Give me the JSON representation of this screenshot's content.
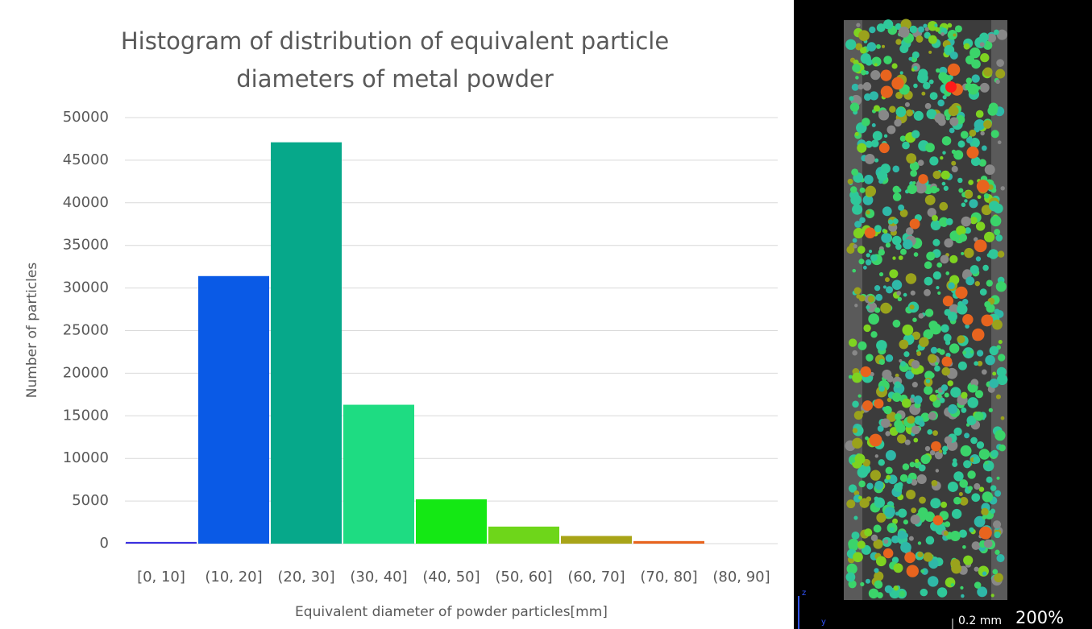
{
  "chart_data": {
    "type": "bar",
    "title": "Histogram of distribution of equivalent particle diameters of metal powder",
    "x_label": "Equivalent diameter of powder particles[mm]",
    "y_label": "Number of particles",
    "categories": [
      "[0, 10]",
      "(10, 20]",
      "(20, 30]",
      "(30, 40]",
      "(40, 50]",
      "(50, 60]",
      "(60, 70]",
      "(70, 80]",
      "(80, 90]"
    ],
    "values": [
      200,
      31400,
      47100,
      16300,
      5200,
      2000,
      900,
      300,
      0
    ],
    "colors": [
      "#3a2fe0",
      "#0a5ae6",
      "#06a88a",
      "#1edc82",
      "#14e814",
      "#6ed61a",
      "#a8a418",
      "#e8641e",
      "#e8641e"
    ],
    "ylim": [
      0,
      50000
    ],
    "yticks": [
      0,
      5000,
      10000,
      15000,
      20000,
      25000,
      30000,
      35000,
      40000,
      45000,
      50000
    ],
    "grid": true
  },
  "viewer": {
    "scale_bar": "0.2 mm",
    "zoom": "200%",
    "axis_z": "z",
    "axis_y": "y"
  }
}
